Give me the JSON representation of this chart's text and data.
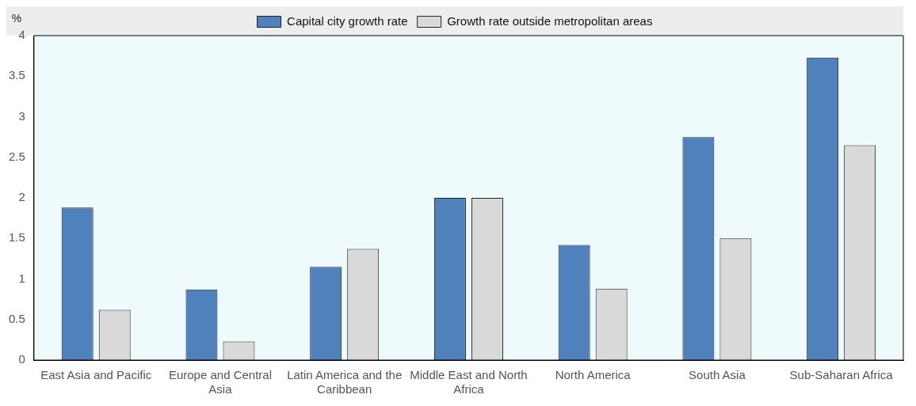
{
  "chart_data": {
    "type": "bar",
    "ylabel": "%",
    "categories": [
      "East Asia and Pacific",
      "Europe and Central Asia",
      "Latin America and the Caribbean",
      "Middle East and North Africa",
      "North America",
      "South Asia",
      "Sub-Saharan Africa"
    ],
    "series": [
      {
        "name": "Capital city growth rate",
        "color": "#4f81bd",
        "values": [
          1.88,
          0.87,
          1.15,
          2.0,
          1.42,
          2.75,
          3.73
        ]
      },
      {
        "name": "Growth rate outside metropolitan areas",
        "color": "#d9d9d9",
        "values": [
          0.62,
          0.23,
          1.37,
          2.0,
          0.88,
          1.5,
          2.65
        ]
      }
    ],
    "ylim": [
      0,
      4
    ],
    "yticks": [
      0,
      0.5,
      1,
      1.5,
      2,
      2.5,
      3,
      3.5,
      4
    ],
    "grid": false,
    "legend": "top"
  }
}
